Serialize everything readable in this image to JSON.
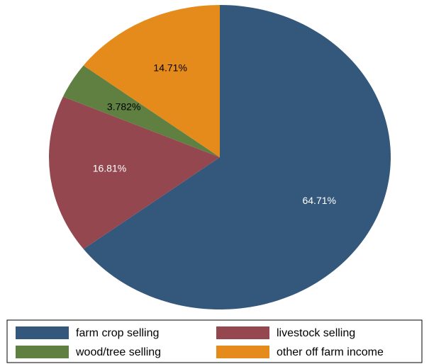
{
  "chart_data": {
    "type": "pie",
    "categories": [
      "farm crop selling",
      "livestock selling",
      "wood/tree selling",
      "other off farm income"
    ],
    "values": [
      64.71,
      16.81,
      3.782,
      14.71
    ],
    "value_labels": [
      "64.71%",
      "16.81%",
      "3.782%",
      "14.71%"
    ],
    "colors": [
      "#34587c",
      "#94474f",
      "#5f8041",
      "#e58b1b"
    ]
  }
}
